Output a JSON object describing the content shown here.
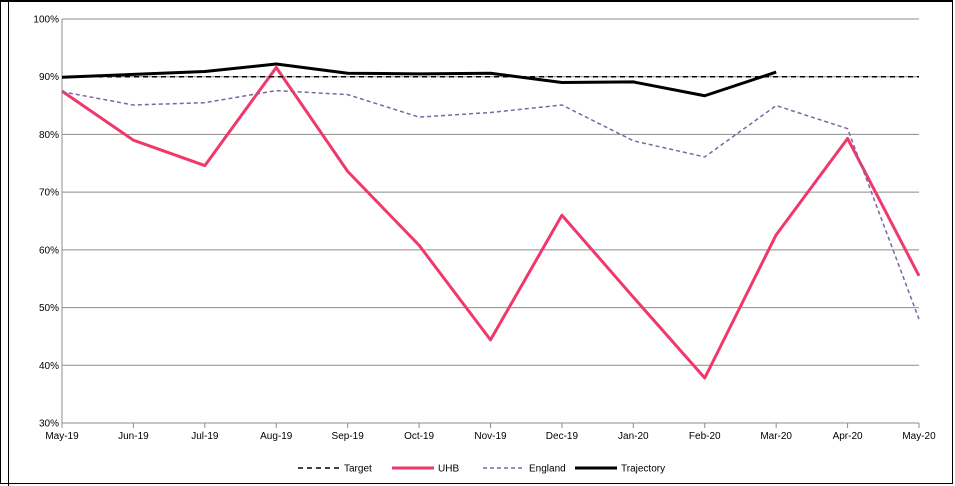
{
  "chart_data": {
    "type": "line",
    "categories": [
      "May-19",
      "Jun-19",
      "Jul-19",
      "Aug-19",
      "Sep-19",
      "Oct-19",
      "Nov-19",
      "Dec-19",
      "Jan-20",
      "Feb-20",
      "Mar-20",
      "Apr-20",
      "May-20"
    ],
    "ylim": [
      30,
      100
    ],
    "yticks": [
      "30%",
      "40%",
      "50%",
      "60%",
      "70%",
      "80%",
      "90%",
      "100%"
    ],
    "grid": true,
    "legend_position": "bottom",
    "series": [
      {
        "name": "Target",
        "color": "#000000",
        "style": "dashed",
        "values": [
          90,
          90,
          90,
          90,
          90,
          90,
          90,
          90,
          90,
          90,
          90,
          90,
          90
        ]
      },
      {
        "name": "UHB",
        "color": "#f0386b",
        "style": "solid",
        "values": [
          87.5,
          79,
          74.6,
          91.6,
          73.6,
          60.8,
          44.4,
          66,
          51.8,
          37.8,
          62.6,
          79.3,
          55.5
        ]
      },
      {
        "name": "England",
        "color": "#8064a2",
        "style": "dashed",
        "values": [
          87.4,
          85.1,
          85.5,
          87.6,
          86.9,
          83,
          83.8,
          85.1,
          78.9,
          76.1,
          85,
          81,
          48
        ]
      },
      {
        "name": "Trajectory",
        "color": "#000000",
        "style": "solid",
        "values": [
          89.9,
          90.4,
          90.9,
          92.2,
          90.6,
          90.5,
          90.6,
          89,
          89.1,
          86.7,
          90.8,
          null,
          null
        ]
      }
    ]
  }
}
